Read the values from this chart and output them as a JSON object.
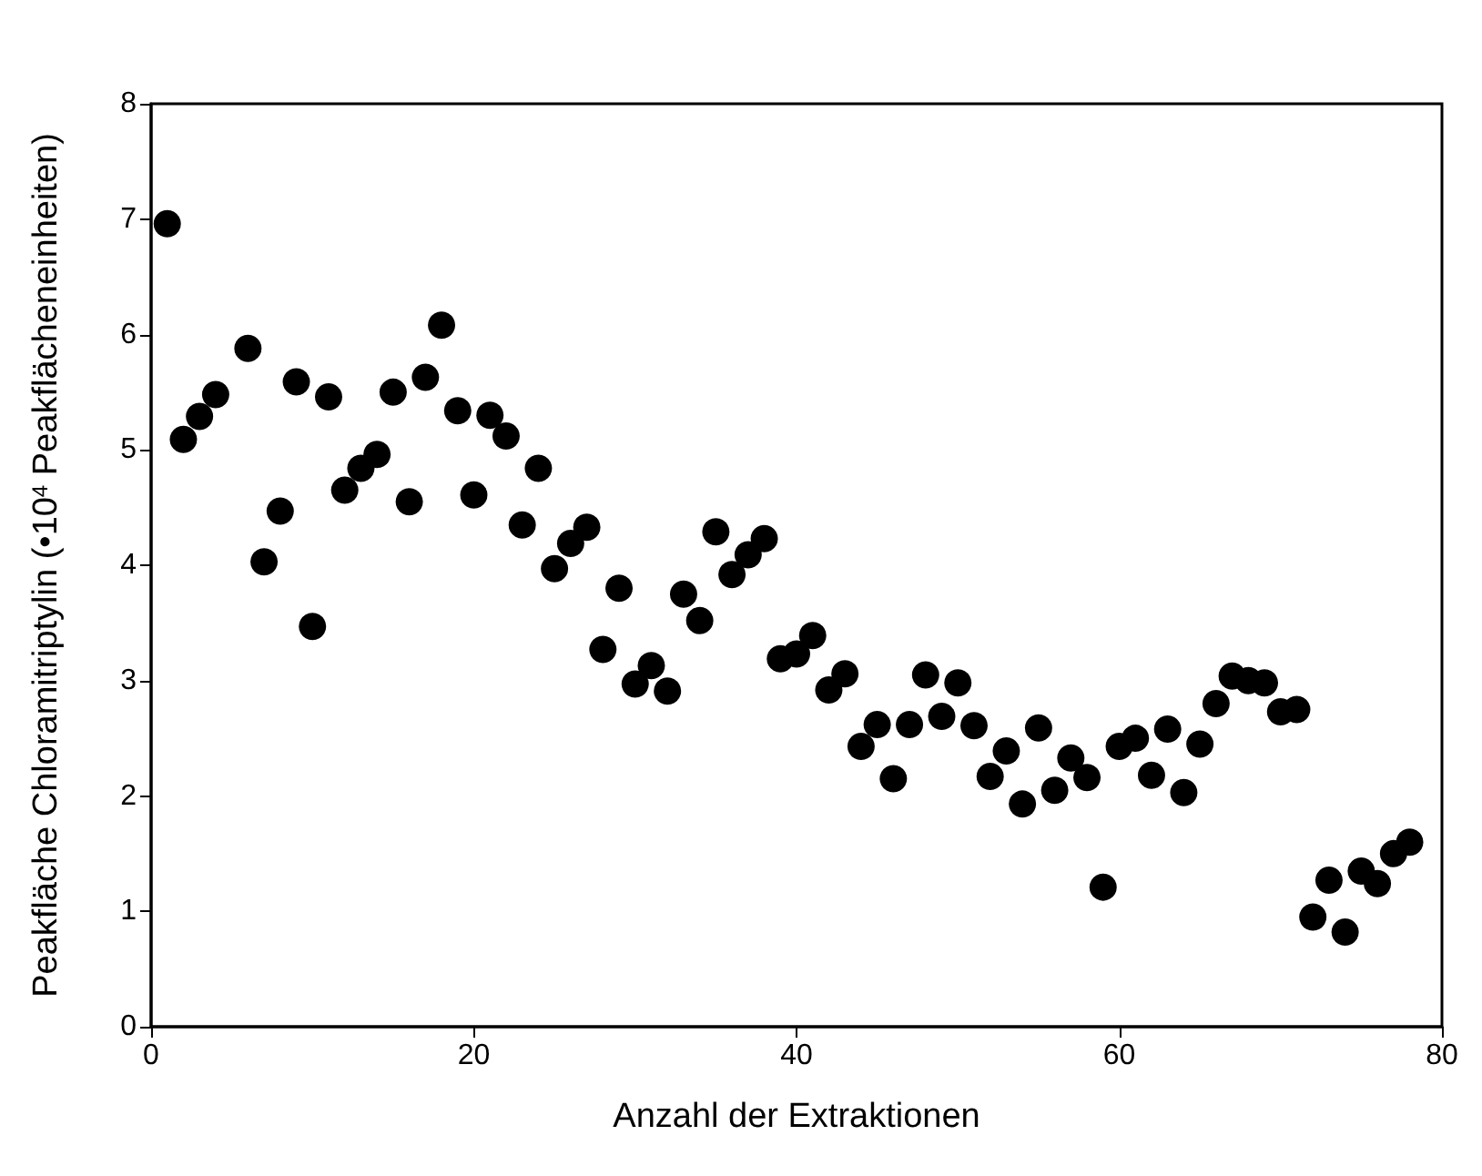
{
  "chart_data": {
    "type": "scatter",
    "xlabel": "Anzahl der Extraktionen",
    "ylabel": "Peakfläche Chloramitriptylin (•10$^{4}$ Peakflächeneinheiten)",
    "x": [
      1,
      2,
      3,
      4,
      6,
      7,
      8,
      9,
      10,
      11,
      12,
      13,
      14,
      15,
      16,
      17,
      18,
      19,
      20,
      21,
      22,
      23,
      24,
      25,
      26,
      27,
      28,
      29,
      30,
      31,
      32,
      33,
      34,
      35,
      36,
      37,
      38,
      39,
      40,
      41,
      42,
      43,
      44,
      45,
      46,
      47,
      48,
      49,
      50,
      51,
      52,
      53,
      54,
      55,
      56,
      57,
      58,
      59,
      60,
      61,
      62,
      63,
      64,
      65,
      66,
      67,
      68,
      69,
      70,
      71,
      72,
      73,
      74,
      75,
      76,
      77,
      78
    ],
    "values": [
      6.96,
      5.09,
      5.29,
      5.48,
      5.88,
      4.03,
      4.47,
      5.59,
      3.47,
      5.46,
      4.65,
      4.84,
      4.96,
      5.5,
      4.55,
      5.63,
      6.08,
      5.34,
      4.61,
      5.3,
      5.12,
      4.35,
      4.84,
      3.97,
      4.19,
      4.33,
      3.27,
      3.8,
      2.97,
      3.13,
      2.91,
      3.75,
      3.52,
      4.29,
      3.92,
      4.09,
      4.23,
      3.19,
      3.23,
      3.39,
      2.92,
      3.06,
      2.43,
      2.62,
      2.15,
      2.62,
      3.05,
      2.69,
      2.98,
      2.61,
      2.17,
      2.39,
      1.93,
      2.59,
      2.05,
      2.33,
      2.16,
      1.21,
      2.43,
      2.5,
      2.18,
      2.58,
      2.03,
      2.45,
      2.8,
      3.04,
      3.0,
      2.98,
      2.73,
      2.75,
      0.95,
      1.27,
      0.82,
      1.35,
      1.24,
      1.5,
      1.6
    ],
    "color": "#000000",
    "marker": "circle",
    "xlim": [
      0,
      80
    ],
    "xticks": [
      0,
      20,
      40,
      60,
      80
    ],
    "ylim": [
      0,
      8
    ],
    "yticks": [
      0,
      1,
      2,
      3,
      4,
      5,
      6,
      7,
      8
    ],
    "grid": false
  }
}
